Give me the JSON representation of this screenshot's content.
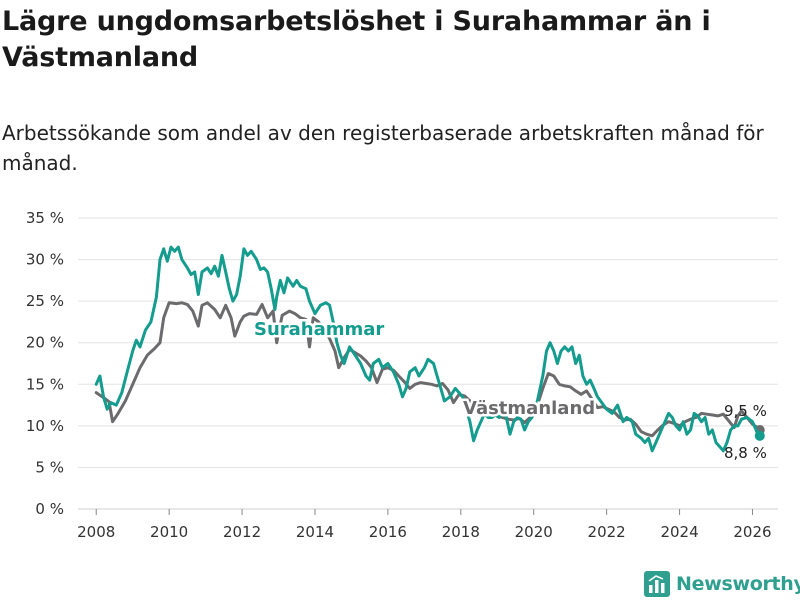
{
  "title": "Lägre ungdomsarbetslöshet i Surahammar än i Västmanland",
  "subtitle": "Arbetssökande som andel av den registerbaserade arbetskraften månad för månad.",
  "brand": {
    "name": "Newsworthy",
    "icon": "bar-chart-logo-icon",
    "color": "#2f9f8f"
  },
  "chart_data": {
    "type": "line",
    "ylim": [
      0,
      35
    ],
    "xlim": [
      2007.5,
      2026.7
    ],
    "yticks": [
      0,
      5,
      10,
      15,
      20,
      25,
      30,
      35
    ],
    "ytick_labels": [
      "0 %",
      "5 %",
      "10 %",
      "15 %",
      "20 %",
      "25 %",
      "30 %",
      "35 %"
    ],
    "xticks": [
      2008,
      2010,
      2012,
      2014,
      2016,
      2018,
      2020,
      2022,
      2024,
      2026
    ],
    "xtick_labels": [
      "2008",
      "2010",
      "2012",
      "2014",
      "2016",
      "2018",
      "2020",
      "2022",
      "2024",
      "2026"
    ],
    "grid": true,
    "series": [
      {
        "name": "Västmanland",
        "color": "#6b6b6e",
        "end_label": "9,5 %",
        "points": [
          [
            2008.0,
            14.0
          ],
          [
            2008.2,
            13.4
          ],
          [
            2008.35,
            12.9
          ],
          [
            2008.45,
            10.5
          ],
          [
            2008.6,
            11.5
          ],
          [
            2008.8,
            13.0
          ],
          [
            2009.0,
            15.0
          ],
          [
            2009.2,
            17.0
          ],
          [
            2009.4,
            18.5
          ],
          [
            2009.6,
            19.3
          ],
          [
            2009.75,
            20.0
          ],
          [
            2009.85,
            23.0
          ],
          [
            2010.0,
            24.8
          ],
          [
            2010.2,
            24.7
          ],
          [
            2010.35,
            24.8
          ],
          [
            2010.5,
            24.6
          ],
          [
            2010.65,
            23.8
          ],
          [
            2010.8,
            22.0
          ],
          [
            2010.9,
            24.5
          ],
          [
            2011.05,
            24.8
          ],
          [
            2011.25,
            24.0
          ],
          [
            2011.4,
            23.0
          ],
          [
            2011.55,
            24.5
          ],
          [
            2011.7,
            23.0
          ],
          [
            2011.8,
            20.8
          ],
          [
            2011.95,
            22.5
          ],
          [
            2012.05,
            23.2
          ],
          [
            2012.2,
            23.5
          ],
          [
            2012.4,
            23.4
          ],
          [
            2012.55,
            24.6
          ],
          [
            2012.7,
            23.0
          ],
          [
            2012.85,
            23.8
          ],
          [
            2012.95,
            20.0
          ],
          [
            2013.1,
            23.3
          ],
          [
            2013.3,
            23.8
          ],
          [
            2013.45,
            23.5
          ],
          [
            2013.6,
            23.0
          ],
          [
            2013.75,
            22.8
          ],
          [
            2013.85,
            19.5
          ],
          [
            2013.95,
            23.0
          ],
          [
            2014.1,
            22.5
          ],
          [
            2014.25,
            21.5
          ],
          [
            2014.4,
            20.5
          ],
          [
            2014.55,
            19.0
          ],
          [
            2014.65,
            17.0
          ],
          [
            2014.8,
            18.2
          ],
          [
            2014.95,
            19.2
          ],
          [
            2015.1,
            18.8
          ],
          [
            2015.25,
            18.4
          ],
          [
            2015.4,
            17.8
          ],
          [
            2015.55,
            17.0
          ],
          [
            2015.7,
            15.2
          ],
          [
            2015.85,
            16.8
          ],
          [
            2016.0,
            17.0
          ],
          [
            2016.15,
            16.7
          ],
          [
            2016.3,
            16.0
          ],
          [
            2016.45,
            15.3
          ],
          [
            2016.6,
            14.5
          ],
          [
            2016.75,
            15.0
          ],
          [
            2016.9,
            15.2
          ],
          [
            2017.05,
            15.1
          ],
          [
            2017.2,
            15.0
          ],
          [
            2017.35,
            14.8
          ],
          [
            2017.5,
            15.1
          ],
          [
            2017.65,
            14.3
          ],
          [
            2017.8,
            12.8
          ],
          [
            2017.95,
            13.8
          ],
          [
            2018.1,
            13.6
          ],
          [
            2018.25,
            13.0
          ],
          [
            2018.4,
            12.2
          ],
          [
            2018.55,
            11.6
          ],
          [
            2018.7,
            11.2
          ],
          [
            2018.85,
            11.5
          ],
          [
            2019.0,
            11.2
          ],
          [
            2019.15,
            11.0
          ],
          [
            2019.3,
            10.8
          ],
          [
            2019.45,
            10.7
          ],
          [
            2019.6,
            10.9
          ],
          [
            2019.75,
            10.4
          ],
          [
            2019.9,
            11.0
          ],
          [
            2020.1,
            12.5
          ],
          [
            2020.25,
            14.5
          ],
          [
            2020.4,
            16.3
          ],
          [
            2020.55,
            16.0
          ],
          [
            2020.7,
            15.0
          ],
          [
            2020.85,
            14.8
          ],
          [
            2021.0,
            14.7
          ],
          [
            2021.15,
            14.2
          ],
          [
            2021.3,
            13.8
          ],
          [
            2021.45,
            14.2
          ],
          [
            2021.6,
            13.2
          ],
          [
            2021.75,
            12.2
          ],
          [
            2021.9,
            12.3
          ],
          [
            2022.05,
            12.0
          ],
          [
            2022.2,
            11.7
          ],
          [
            2022.35,
            11.0
          ],
          [
            2022.5,
            10.7
          ],
          [
            2022.65,
            10.8
          ],
          [
            2022.8,
            10.2
          ],
          [
            2022.95,
            9.3
          ],
          [
            2023.1,
            9.0
          ],
          [
            2023.25,
            8.8
          ],
          [
            2023.4,
            9.5
          ],
          [
            2023.55,
            10.1
          ],
          [
            2023.7,
            10.5
          ],
          [
            2023.85,
            10.3
          ],
          [
            2024.0,
            10.0
          ],
          [
            2024.15,
            10.5
          ],
          [
            2024.3,
            10.8
          ],
          [
            2024.45,
            11.0
          ],
          [
            2024.6,
            11.5
          ],
          [
            2024.75,
            11.4
          ],
          [
            2024.9,
            11.3
          ],
          [
            2025.05,
            11.2
          ],
          [
            2025.2,
            11.4
          ],
          [
            2025.35,
            10.6
          ],
          [
            2025.5,
            9.8
          ],
          [
            2025.6,
            11.2
          ],
          [
            2025.7,
            11.8
          ],
          [
            2025.85,
            11.0
          ],
          [
            2026.0,
            10.2
          ],
          [
            2026.1,
            9.9
          ],
          [
            2026.2,
            9.5
          ]
        ]
      },
      {
        "name": "Surahammar",
        "color": "#149c8e",
        "end_label": "8,8 %",
        "points": [
          [
            2008.0,
            15.0
          ],
          [
            2008.1,
            16.0
          ],
          [
            2008.2,
            13.5
          ],
          [
            2008.3,
            12.0
          ],
          [
            2008.4,
            12.8
          ],
          [
            2008.55,
            12.5
          ],
          [
            2008.7,
            14.0
          ],
          [
            2008.85,
            16.5
          ],
          [
            2009.0,
            19.0
          ],
          [
            2009.1,
            20.3
          ],
          [
            2009.2,
            19.5
          ],
          [
            2009.35,
            21.5
          ],
          [
            2009.5,
            22.5
          ],
          [
            2009.65,
            25.5
          ],
          [
            2009.75,
            30.0
          ],
          [
            2009.85,
            31.3
          ],
          [
            2009.95,
            29.8
          ],
          [
            2010.05,
            31.5
          ],
          [
            2010.15,
            31.0
          ],
          [
            2010.25,
            31.5
          ],
          [
            2010.35,
            30.0
          ],
          [
            2010.5,
            29.0
          ],
          [
            2010.6,
            28.2
          ],
          [
            2010.7,
            28.5
          ],
          [
            2010.8,
            25.8
          ],
          [
            2010.9,
            28.5
          ],
          [
            2011.05,
            29.0
          ],
          [
            2011.15,
            28.3
          ],
          [
            2011.25,
            29.2
          ],
          [
            2011.35,
            28.0
          ],
          [
            2011.45,
            30.5
          ],
          [
            2011.55,
            28.5
          ],
          [
            2011.65,
            26.5
          ],
          [
            2011.75,
            25.0
          ],
          [
            2011.85,
            25.8
          ],
          [
            2011.95,
            28.0
          ],
          [
            2012.05,
            31.3
          ],
          [
            2012.15,
            30.5
          ],
          [
            2012.25,
            31.0
          ],
          [
            2012.4,
            30.0
          ],
          [
            2012.5,
            28.8
          ],
          [
            2012.6,
            29.0
          ],
          [
            2012.7,
            28.5
          ],
          [
            2012.8,
            26.5
          ],
          [
            2012.9,
            24.0
          ],
          [
            2012.95,
            25.5
          ],
          [
            2013.05,
            27.5
          ],
          [
            2013.15,
            26.0
          ],
          [
            2013.25,
            27.8
          ],
          [
            2013.4,
            26.8
          ],
          [
            2013.5,
            27.5
          ],
          [
            2013.6,
            26.8
          ],
          [
            2013.75,
            26.5
          ],
          [
            2013.85,
            25.0
          ],
          [
            2014.0,
            23.5
          ],
          [
            2014.15,
            24.5
          ],
          [
            2014.3,
            24.8
          ],
          [
            2014.4,
            24.5
          ],
          [
            2014.5,
            22.5
          ],
          [
            2014.6,
            20.0
          ],
          [
            2014.7,
            18.5
          ],
          [
            2014.8,
            17.5
          ],
          [
            2014.95,
            19.5
          ],
          [
            2015.1,
            18.5
          ],
          [
            2015.25,
            17.5
          ],
          [
            2015.4,
            16.0
          ],
          [
            2015.5,
            15.5
          ],
          [
            2015.6,
            17.5
          ],
          [
            2015.75,
            18.0
          ],
          [
            2015.85,
            17.0
          ],
          [
            2016.0,
            17.5
          ],
          [
            2016.15,
            16.5
          ],
          [
            2016.3,
            15.0
          ],
          [
            2016.4,
            13.5
          ],
          [
            2016.5,
            14.5
          ],
          [
            2016.6,
            16.5
          ],
          [
            2016.75,
            17.0
          ],
          [
            2016.85,
            16.0
          ],
          [
            2017.0,
            17.0
          ],
          [
            2017.1,
            18.0
          ],
          [
            2017.25,
            17.5
          ],
          [
            2017.35,
            16.0
          ],
          [
            2017.45,
            14.5
          ],
          [
            2017.55,
            13.0
          ],
          [
            2017.7,
            13.5
          ],
          [
            2017.85,
            14.5
          ],
          [
            2017.95,
            14.0
          ],
          [
            2018.05,
            13.5
          ],
          [
            2018.15,
            12.0
          ],
          [
            2018.25,
            10.5
          ],
          [
            2018.35,
            8.2
          ],
          [
            2018.45,
            9.5
          ],
          [
            2018.55,
            10.5
          ],
          [
            2018.65,
            11.5
          ],
          [
            2018.75,
            11.0
          ],
          [
            2018.85,
            11.0
          ],
          [
            2018.95,
            11.3
          ],
          [
            2019.05,
            11.0
          ],
          [
            2019.15,
            11.5
          ],
          [
            2019.25,
            11.0
          ],
          [
            2019.35,
            9.0
          ],
          [
            2019.45,
            10.5
          ],
          [
            2019.55,
            11.0
          ],
          [
            2019.65,
            10.8
          ],
          [
            2019.75,
            9.5
          ],
          [
            2019.85,
            10.5
          ],
          [
            2019.95,
            11.0
          ],
          [
            2020.1,
            13.0
          ],
          [
            2020.25,
            16.0
          ],
          [
            2020.35,
            19.0
          ],
          [
            2020.45,
            20.0
          ],
          [
            2020.55,
            19.0
          ],
          [
            2020.65,
            17.5
          ],
          [
            2020.75,
            19.0
          ],
          [
            2020.85,
            19.5
          ],
          [
            2020.95,
            19.0
          ],
          [
            2021.05,
            19.5
          ],
          [
            2021.15,
            17.5
          ],
          [
            2021.25,
            18.5
          ],
          [
            2021.35,
            16.0
          ],
          [
            2021.45,
            15.0
          ],
          [
            2021.55,
            15.5
          ],
          [
            2021.65,
            14.5
          ],
          [
            2021.75,
            13.5
          ],
          [
            2022.0,
            12.0
          ],
          [
            2022.15,
            11.5
          ],
          [
            2022.3,
            12.5
          ],
          [
            2022.45,
            10.5
          ],
          [
            2022.55,
            11.0
          ],
          [
            2022.7,
            10.5
          ],
          [
            2022.8,
            9.0
          ],
          [
            2022.95,
            8.5
          ],
          [
            2023.05,
            8.0
          ],
          [
            2023.15,
            8.5
          ],
          [
            2023.25,
            7.0
          ],
          [
            2023.35,
            8.0
          ],
          [
            2023.5,
            9.5
          ],
          [
            2023.6,
            10.5
          ],
          [
            2023.7,
            11.5
          ],
          [
            2023.8,
            11.0
          ],
          [
            2023.9,
            10.0
          ],
          [
            2024.0,
            9.5
          ],
          [
            2024.1,
            10.5
          ],
          [
            2024.2,
            9.0
          ],
          [
            2024.3,
            9.5
          ],
          [
            2024.4,
            11.5
          ],
          [
            2024.5,
            11.2
          ],
          [
            2024.6,
            10.5
          ],
          [
            2024.7,
            11.0
          ],
          [
            2024.8,
            9.0
          ],
          [
            2024.9,
            9.5
          ],
          [
            2025.0,
            8.0
          ],
          [
            2025.1,
            7.5
          ],
          [
            2025.2,
            7.0
          ],
          [
            2025.3,
            8.0
          ],
          [
            2025.4,
            9.5
          ],
          [
            2025.5,
            10.0
          ],
          [
            2025.6,
            10.0
          ],
          [
            2025.7,
            10.8
          ],
          [
            2025.85,
            11.0
          ],
          [
            2026.0,
            10.5
          ],
          [
            2026.1,
            9.5
          ],
          [
            2026.2,
            8.8
          ]
        ]
      }
    ]
  }
}
